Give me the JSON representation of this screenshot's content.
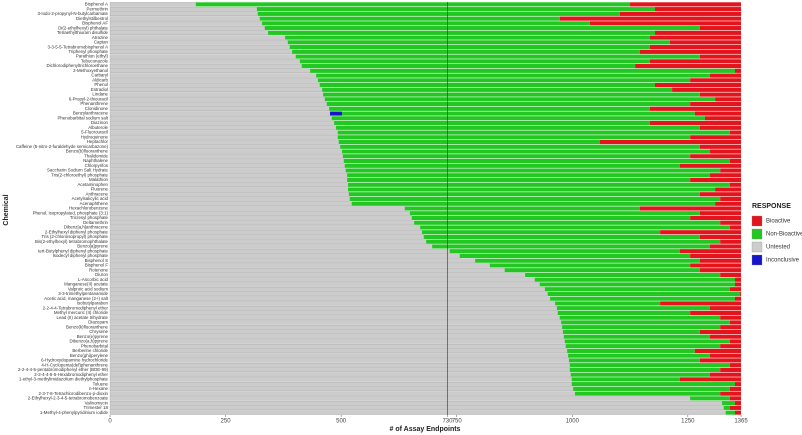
{
  "chart_data": {
    "type": "stacked_barh",
    "xlabel": "# of Assay Endpoints",
    "ylabel": "Chemical",
    "legend_title": "RESPONSE",
    "legend": "right",
    "xlim": [
      0,
      1365
    ],
    "xticks": [
      0,
      250,
      500,
      730,
      750,
      1000,
      1250,
      1365
    ],
    "reference_line": 730,
    "categories": [
      "Bisphenol A",
      "Permethrin",
      "3-Iodo-2-propynyl-N-butylcarbamate",
      "Diethylstilbestrol",
      "Bisphenol AF",
      "Di(2-ethylhexyl) phthalate",
      "Tetraethylthiuram disulfide",
      "Atrazine",
      "Captan",
      "3-3-5-5-Tetrabromobisphenol A",
      "Triphenyl phosphate",
      "Parathion (ethyl)",
      "Tebuconazole",
      "Dichlorodiphenyltrichloroethane",
      "2-Methoxyethanol",
      "Carbaryl",
      "Aldicarb",
      "Phenol",
      "Estradiol",
      "Lindane",
      "6-Propyl-2-thiouracil",
      "Phenanthrene",
      "Clonidinone",
      "Benzylanthracene",
      "Phenobarbital sodium salt",
      "Diazinon",
      "Albuterole",
      "5-Fluorouracil",
      "Hydroquinone",
      "Heptachlor",
      "Caffeine (5-nitro-2-furaldehyde semicarbazone)",
      "Benzo(b)fluoranthene",
      "Thalidomide",
      "Naphthalene",
      "Chlorpyrifos",
      "Saccharin Sodium Salt Hydrate",
      "Tris(2-chloroethyl) phosphate",
      "Malathion",
      "Acetaminophen",
      "Fluorene",
      "Anthracene",
      "Acetylsalicylic acid",
      "Acenaphthene",
      "Hexachlorobenzene",
      "Phenol, isopropylated, phosphate (3:1)",
      "Tricresyl phosphate",
      "Deltamethrin",
      "Dibenz[a,h]anthracene",
      "2-Ethylhexyl diphenyl phosphate",
      "Tris (2-chloroisopropyl) phosphate",
      "Bis(2-ethylhexyl) tetrabromophthalate",
      "Benzo[a]pyrene",
      "tert-Butylphenyl diphenyl phosphate",
      "Isodecyl diphenyl phosphate",
      "Bisphenol S",
      "Bisphenol F",
      "Rotenone",
      "Diuron",
      "L-Ascorbic acid",
      "Manganese(II) acetate",
      "Valproic acid sodium",
      "3-3-trimethylpentanamide",
      "Acetic acid, manganese (2+) salt",
      "Isobutylparaben",
      "2-2-4-4-Tetrabromodiphenyl ether",
      "Methyl mercuric (II) chloride",
      "Lead (II) acetate trihydrate",
      "Diazepam",
      "Benzo(k)fluoranthene",
      "Chrysene",
      "Benzo(e)pyrene",
      "Dibenzo(a,h)pyrene",
      "Phenobarbital",
      "Berberine chloride",
      "Benzo(ghi)perylene",
      "6-Hydroxydopamine hydrochloride",
      "4-H-Cyclopenta(def)phenanthrene",
      "2-2-4-4-5-pentabromodiphenyl ether (BDE-99)",
      "2-2-4-4-5-5-Hexabromodiphenyl ether",
      "1-ethyl-3-methylimidazolium diethylphosphate",
      "Toluene",
      "n-Hexane",
      "2-3-7-8-Tetrachlorodibenzo-p-dioxin",
      "2-Ethylhexyl-2-3-4-5-tetrabromobenzoate",
      "Valinomycin",
      "Trimester 18",
      "1-Methyl-4-phenylpyridinium iodide"
    ],
    "series": [
      {
        "name": "Untested",
        "color": "#cccccc",
        "values": [
          186,
          318,
          320,
          324,
          329,
          335,
          342,
          379,
          385,
          389,
          394,
          402,
          411,
          415,
          433,
          446,
          450,
          454,
          459,
          461,
          465,
          469,
          474,
          476,
          480,
          485,
          489,
          493,
          493,
          495,
          498,
          502,
          504,
          506,
          508,
          510,
          513,
          513,
          515,
          515,
          517,
          519,
          523,
          638,
          649,
          653,
          658,
          671,
          675,
          679,
          684,
          697,
          735,
          757,
          790,
          822,
          854,
          898,
          919,
          930,
          941,
          947,
          952,
          963,
          967,
          969,
          973,
          976,
          978,
          980,
          982,
          984,
          986,
          989,
          991,
          993,
          995,
          995,
          997,
          999,
          999,
          1002,
          1006,
          1255,
          1324,
          1328,
          1332
        ]
      },
      {
        "name": "Inconclusive",
        "color": "#1515cc",
        "values": [
          0,
          0,
          0,
          0,
          0,
          0,
          0,
          0,
          0,
          0,
          0,
          0,
          0,
          0,
          0,
          0,
          0,
          0,
          0,
          0,
          0,
          0,
          0,
          26,
          0,
          0,
          0,
          0,
          0,
          0,
          0,
          0,
          0,
          0,
          0,
          0,
          0,
          0,
          0,
          0,
          0,
          0,
          0,
          0,
          0,
          0,
          0,
          0,
          0,
          0,
          0,
          0,
          0,
          0,
          0,
          0,
          0,
          0,
          0,
          0,
          0,
          0,
          0,
          0,
          0,
          0,
          0,
          0,
          0,
          0,
          0,
          0,
          0,
          0,
          0,
          0,
          0,
          0,
          0,
          0,
          0,
          0,
          0,
          0,
          0,
          0,
          0
        ]
      },
      {
        "name": "Non-Bioactive",
        "color": "#22c722",
        "values": [
          939,
          861,
          783,
          649,
          709,
          941,
          837,
          789,
          826,
          779,
          752,
          874,
          757,
          721,
          919,
          852,
          805,
          725,
          757,
          815,
          844,
          786,
          694,
          763,
          807,
          683,
          787,
          848,
          762,
          565,
          778,
          796,
          751,
          835,
          725,
          810,
          785,
          742,
          826,
          794,
          759,
          801,
          786,
          508,
          627,
          602,
          662,
          670,
          515,
          597,
          636,
          601,
          498,
          498,
          486,
          433,
          422,
          422,
          433,
          422,
          400,
          416,
          400,
          227,
          331,
          286,
          347,
          365,
          342,
          296,
          316,
          357,
          334,
          276,
          307,
          283,
          346,
          325,
          301,
          234,
          353,
          339,
          314,
          86,
          28,
          13,
          20
        ]
      },
      {
        "name": "Bioactive",
        "color": "#e3141b",
        "values": [
          240,
          186,
          262,
          392,
          327,
          89,
          186,
          197,
          154,
          197,
          219,
          89,
          197,
          229,
          13,
          67,
          110,
          186,
          149,
          89,
          56,
          110,
          197,
          100,
          78,
          197,
          89,
          24,
          110,
          305,
          89,
          67,
          110,
          24,
          132,
          45,
          67,
          110,
          24,
          56,
          89,
          45,
          56,
          219,
          89,
          110,
          45,
          24,
          175,
          89,
          45,
          67,
          132,
          110,
          89,
          110,
          89,
          45,
          13,
          13,
          24,
          2,
          13,
          175,
          67,
          110,
          45,
          24,
          45,
          89,
          67,
          24,
          45,
          100,
          67,
          89,
          24,
          45,
          67,
          132,
          13,
          24,
          45,
          24,
          13,
          24,
          13
        ]
      }
    ]
  }
}
